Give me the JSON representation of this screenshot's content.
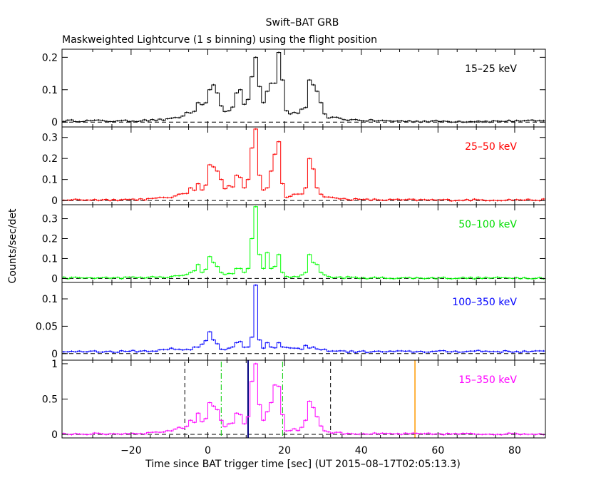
{
  "figure": {
    "title": "Swift–BAT GRB",
    "subtitle": "Maskweighted Lightcurve (1 s binning) using the flight position",
    "xlabel": "Time since BAT trigger time [sec] (UT 2015–08–17T02:05:13.3)",
    "ylabel": "Counts/sec/det"
  },
  "chart_data": {
    "type": "line",
    "step": true,
    "xlim": [
      -38,
      88
    ],
    "xticks": [
      -20,
      0,
      20,
      40,
      60,
      80
    ],
    "xtick_labels": [
      "−20",
      "0",
      "20",
      "40",
      "60",
      "80"
    ],
    "markers": {
      "black_dashed": [
        -6,
        32
      ],
      "green_dashdot": [
        3.5,
        19.5
      ],
      "navy_solid": [
        10.5
      ],
      "orange_solid": [
        54
      ]
    },
    "panels": [
      {
        "label": "15–25 keV",
        "color": "#000000",
        "ylim": [
          -0.015,
          0.225
        ],
        "yticks": [
          0,
          0.1,
          0.2
        ],
        "ytick_labels": [
          "0",
          "0.1",
          "0.2"
        ],
        "peaks": [
          [
            -30,
            0.006
          ],
          [
            -24,
            0.004
          ],
          [
            -17,
            0.007
          ],
          [
            -10,
            0.012
          ],
          [
            -6,
            0.03
          ],
          [
            -3,
            0.06
          ],
          [
            0,
            0.1
          ],
          [
            1,
            0.115
          ],
          [
            2,
            0.09
          ],
          [
            3,
            0.05
          ],
          [
            5,
            0.035
          ],
          [
            7,
            0.09
          ],
          [
            8,
            0.1
          ],
          [
            9,
            0.055
          ],
          [
            10,
            0.07
          ],
          [
            11,
            0.14
          ],
          [
            12,
            0.2
          ],
          [
            13,
            0.11
          ],
          [
            14,
            0.06
          ],
          [
            15,
            0.095
          ],
          [
            16,
            0.12
          ],
          [
            17,
            0.12
          ],
          [
            18,
            0.215
          ],
          [
            19,
            0.13
          ],
          [
            20,
            0.035
          ],
          [
            21,
            0.025
          ],
          [
            22,
            0.03
          ],
          [
            24,
            0.04
          ],
          [
            25,
            0.045
          ],
          [
            26,
            0.13
          ],
          [
            27,
            0.115
          ],
          [
            28,
            0.095
          ],
          [
            29,
            0.06
          ],
          [
            30,
            0.025
          ],
          [
            33,
            0.015
          ],
          [
            38,
            0.008
          ],
          [
            50,
            0.004
          ],
          [
            70,
            0.003
          ],
          [
            80,
            0.005
          ]
        ]
      },
      {
        "label": "25–50 keV",
        "color": "#ff0000",
        "ylim": [
          -0.02,
          0.35
        ],
        "yticks": [
          0,
          0.1,
          0.2,
          0.3
        ],
        "ytick_labels": [
          "0",
          "0.1",
          "0.2",
          "0.3"
        ],
        "peaks": [
          [
            -25,
            0.005
          ],
          [
            -15,
            0.01
          ],
          [
            -8,
            0.03
          ],
          [
            -5,
            0.06
          ],
          [
            -3,
            0.08
          ],
          [
            -2,
            0.05
          ],
          [
            0,
            0.17
          ],
          [
            1,
            0.16
          ],
          [
            2,
            0.14
          ],
          [
            3,
            0.1
          ],
          [
            5,
            0.07
          ],
          [
            7,
            0.12
          ],
          [
            8,
            0.11
          ],
          [
            9,
            0.06
          ],
          [
            10,
            0.1
          ],
          [
            11,
            0.25
          ],
          [
            12,
            0.34
          ],
          [
            13,
            0.12
          ],
          [
            14,
            0.05
          ],
          [
            15,
            0.06
          ],
          [
            16,
            0.14
          ],
          [
            17,
            0.22
          ],
          [
            18,
            0.28
          ],
          [
            19,
            0.08
          ],
          [
            20,
            0.015
          ],
          [
            21,
            0.02
          ],
          [
            22,
            0.03
          ],
          [
            25,
            0.06
          ],
          [
            26,
            0.2
          ],
          [
            27,
            0.15
          ],
          [
            28,
            0.06
          ],
          [
            29,
            0.03
          ],
          [
            32,
            0.015
          ],
          [
            40,
            0.005
          ],
          [
            60,
            0.003
          ],
          [
            80,
            0.004
          ]
        ]
      },
      {
        "label": "50–100 keV",
        "color": "#00ff00",
        "ylim": [
          -0.02,
          0.37
        ],
        "yticks": [
          0,
          0.1,
          0.2,
          0.3
        ],
        "ytick_labels": [
          "0",
          "0.1",
          "0.2",
          "0.3"
        ],
        "peaks": [
          [
            -25,
            0.004
          ],
          [
            -10,
            0.01
          ],
          [
            -5,
            0.03
          ],
          [
            -3,
            0.07
          ],
          [
            -2,
            0.03
          ],
          [
            0,
            0.11
          ],
          [
            1,
            0.08
          ],
          [
            2,
            0.06
          ],
          [
            3,
            0.03
          ],
          [
            5,
            0.025
          ],
          [
            7,
            0.05
          ],
          [
            8,
            0.05
          ],
          [
            9,
            0.03
          ],
          [
            10,
            0.05
          ],
          [
            11,
            0.2
          ],
          [
            12,
            0.36
          ],
          [
            13,
            0.12
          ],
          [
            14,
            0.05
          ],
          [
            15,
            0.13
          ],
          [
            16,
            0.05
          ],
          [
            17,
            0.06
          ],
          [
            18,
            0.12
          ],
          [
            19,
            0.03
          ],
          [
            21,
            0.005
          ],
          [
            25,
            0.03
          ],
          [
            26,
            0.12
          ],
          [
            27,
            0.08
          ],
          [
            28,
            0.07
          ],
          [
            29,
            0.03
          ],
          [
            31,
            0.01
          ],
          [
            40,
            0.004
          ],
          [
            60,
            0.003
          ],
          [
            80,
            0.004
          ]
        ]
      },
      {
        "label": "100–350 keV",
        "color": "#0000ff",
        "ylim": [
          -0.012,
          0.13
        ],
        "yticks": [
          0,
          0.05,
          0.1
        ],
        "ytick_labels": [
          "0",
          "0.05",
          "0.1"
        ],
        "peaks": [
          [
            -30,
            0.005
          ],
          [
            -20,
            0.006
          ],
          [
            -10,
            0.01
          ],
          [
            -4,
            0.012
          ],
          [
            0,
            0.04
          ],
          [
            1,
            0.025
          ],
          [
            2,
            0.018
          ],
          [
            3,
            0.008
          ],
          [
            5,
            0.01
          ],
          [
            7,
            0.02
          ],
          [
            8,
            0.022
          ],
          [
            10,
            0.012
          ],
          [
            11,
            0.03
          ],
          [
            12,
            0.125
          ],
          [
            13,
            0.025
          ],
          [
            14,
            0.01
          ],
          [
            15,
            0.02
          ],
          [
            16,
            0.012
          ],
          [
            18,
            0.02
          ],
          [
            22,
            0.01
          ],
          [
            25,
            0.015
          ],
          [
            27,
            0.012
          ],
          [
            35,
            0.005
          ],
          [
            50,
            0.005
          ],
          [
            70,
            0.006
          ],
          [
            85,
            0.005
          ]
        ]
      },
      {
        "label": "15–350 keV",
        "color": "#ff00ff",
        "ylim": [
          -0.05,
          1.05
        ],
        "yticks": [
          0,
          0.5,
          1
        ],
        "ytick_labels": [
          "0",
          "0.5",
          "1"
        ],
        "peaks": [
          [
            -25,
            0.01
          ],
          [
            -15,
            0.03
          ],
          [
            -8,
            0.1
          ],
          [
            -5,
            0.2
          ],
          [
            -3,
            0.3
          ],
          [
            -2,
            0.18
          ],
          [
            0,
            0.45
          ],
          [
            1,
            0.4
          ],
          [
            2,
            0.35
          ],
          [
            3,
            0.2
          ],
          [
            5,
            0.15
          ],
          [
            7,
            0.3
          ],
          [
            8,
            0.28
          ],
          [
            9,
            0.15
          ],
          [
            10,
            0.25
          ],
          [
            11,
            0.75
          ],
          [
            12,
            1.0
          ],
          [
            13,
            0.42
          ],
          [
            14,
            0.2
          ],
          [
            15,
            0.32
          ],
          [
            16,
            0.45
          ],
          [
            17,
            0.7
          ],
          [
            18,
            0.68
          ],
          [
            19,
            0.28
          ],
          [
            20,
            0.05
          ],
          [
            22,
            0.08
          ],
          [
            24,
            0.1
          ],
          [
            25,
            0.2
          ],
          [
            26,
            0.47
          ],
          [
            27,
            0.38
          ],
          [
            28,
            0.25
          ],
          [
            29,
            0.12
          ],
          [
            30,
            0.05
          ],
          [
            33,
            0.03
          ],
          [
            40,
            0.01
          ],
          [
            60,
            0.008
          ],
          [
            80,
            0.01
          ]
        ]
      }
    ]
  }
}
